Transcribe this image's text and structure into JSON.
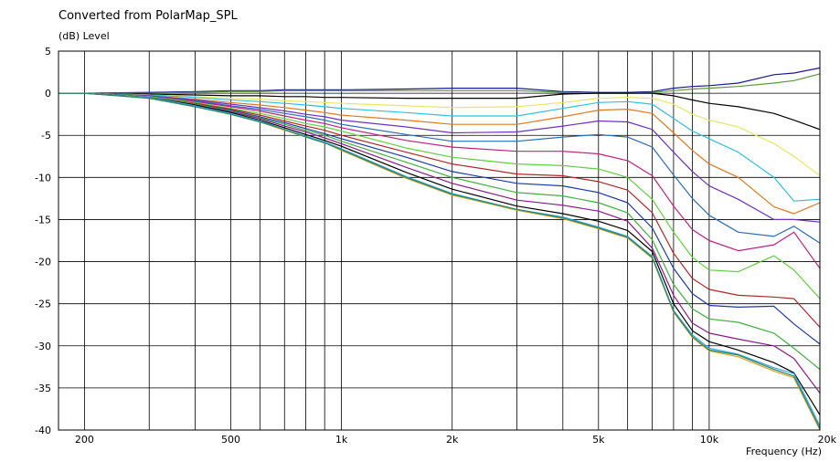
{
  "chart_data": {
    "type": "line",
    "title": "Converted from PolarMap_SPL",
    "ylabel": "(dB)  Level",
    "xlabel": "Frequency  (Hz)",
    "x_scale": "log",
    "xlim": [
      170,
      20000
    ],
    "ylim": [
      -40,
      5
    ],
    "grid": true,
    "x_ticks": [
      {
        "value": 200,
        "label": "200"
      },
      {
        "value": 500,
        "label": "500"
      },
      {
        "value": 1000,
        "label": "1k"
      },
      {
        "value": 2000,
        "label": "2k"
      },
      {
        "value": 5000,
        "label": "5k"
      },
      {
        "value": 10000,
        "label": "10k"
      },
      {
        "value": 20000,
        "label": "20k"
      }
    ],
    "x_minor_grid": [
      300,
      400,
      600,
      700,
      800,
      900,
      3000,
      4000,
      6000,
      7000,
      8000,
      9000
    ],
    "y_ticks": [
      5,
      0,
      -5,
      -10,
      -15,
      -20,
      -25,
      -30,
      -35,
      -40
    ],
    "x": [
      170,
      200,
      300,
      400,
      500,
      600,
      700,
      800,
      900,
      1000,
      1500,
      2000,
      3000,
      4000,
      5000,
      6000,
      7000,
      8000,
      9000,
      10000,
      12000,
      15000,
      17000,
      20000
    ],
    "series": [
      {
        "color": "#1a1a8c",
        "values": [
          0,
          0,
          0.1,
          0.2,
          0.3,
          0.3,
          0.4,
          0.4,
          0.4,
          0.4,
          0.5,
          0.6,
          0.6,
          0.2,
          0.1,
          0.1,
          0.2,
          0.6,
          0.8,
          0.9,
          1.2,
          2.2,
          2.4,
          3.0
        ]
      },
      {
        "color": "#5a9a3a",
        "values": [
          0,
          0,
          0,
          0.1,
          0.2,
          0.2,
          0.3,
          0.3,
          0.3,
          0.3,
          0.3,
          0.3,
          0.3,
          0.1,
          0,
          0,
          0.1,
          0.3,
          0.5,
          0.6,
          0.8,
          1.2,
          1.5,
          2.3
        ]
      },
      {
        "color": "#000000",
        "values": [
          0,
          0,
          -0.1,
          -0.2,
          -0.3,
          -0.3,
          -0.4,
          -0.4,
          -0.5,
          -0.5,
          -0.6,
          -0.6,
          -0.6,
          -0.1,
          0,
          0,
          0,
          -0.3,
          -0.8,
          -1.2,
          -1.6,
          -2.4,
          -3.2,
          -4.3
        ]
      },
      {
        "color": "#e8e860",
        "values": [
          0,
          0,
          -0.2,
          -0.4,
          -0.6,
          -0.7,
          -0.9,
          -1.0,
          -1.1,
          -1.2,
          -1.5,
          -1.7,
          -1.6,
          -1.1,
          -0.6,
          -0.5,
          -0.6,
          -1.3,
          -2.5,
          -3.2,
          -4.0,
          -6.0,
          -7.5,
          -9.8
        ]
      },
      {
        "color": "#30c0e0",
        "values": [
          0,
          0,
          -0.2,
          -0.5,
          -0.8,
          -1.0,
          -1.2,
          -1.4,
          -1.6,
          -1.8,
          -2.3,
          -2.7,
          -2.7,
          -1.8,
          -1.1,
          -1.0,
          -1.3,
          -3.0,
          -4.5,
          -5.4,
          -7.0,
          -10.0,
          -12.8,
          -12.6
        ]
      },
      {
        "color": "#e07820",
        "values": [
          0,
          0,
          -0.3,
          -0.7,
          -1.1,
          -1.4,
          -1.7,
          -2.0,
          -2.3,
          -2.6,
          -3.2,
          -3.7,
          -3.7,
          -2.8,
          -2.0,
          -1.9,
          -2.4,
          -4.7,
          -6.8,
          -8.4,
          -10.0,
          -13.5,
          -14.3,
          -13.0
        ]
      },
      {
        "color": "#7030c0",
        "values": [
          0,
          0,
          -0.3,
          -0.8,
          -1.3,
          -1.7,
          -2.1,
          -2.5,
          -2.8,
          -3.2,
          -4.0,
          -4.7,
          -4.6,
          -3.9,
          -3.3,
          -3.4,
          -4.3,
          -7.0,
          -9.3,
          -11.0,
          -12.6,
          -15.0,
          -15.0,
          -15.3
        ]
      },
      {
        "color": "#2a6eb8",
        "values": [
          0,
          0,
          -0.4,
          -0.9,
          -1.5,
          -1.9,
          -2.4,
          -2.8,
          -3.2,
          -3.7,
          -4.9,
          -5.7,
          -5.7,
          -5.2,
          -4.9,
          -5.2,
          -6.4,
          -9.7,
          -12.5,
          -14.5,
          -16.5,
          -17.0,
          -15.8,
          -17.8
        ]
      },
      {
        "color": "#c02080",
        "values": [
          0,
          0,
          -0.4,
          -1.0,
          -1.6,
          -2.1,
          -2.7,
          -3.2,
          -3.6,
          -4.1,
          -5.6,
          -6.4,
          -6.9,
          -6.9,
          -7.2,
          -8.0,
          -9.8,
          -13.4,
          -16.2,
          -17.5,
          -18.7,
          -18.0,
          -16.5,
          -20.8
        ]
      },
      {
        "color": "#60d040",
        "values": [
          0,
          0,
          -0.4,
          -1.1,
          -1.8,
          -2.4,
          -3.0,
          -3.6,
          -4.0,
          -4.5,
          -6.5,
          -7.6,
          -8.4,
          -8.6,
          -9.0,
          -10.0,
          -12.6,
          -16.5,
          -19.5,
          -21.0,
          -21.2,
          -19.3,
          -21.0,
          -24.4
        ]
      },
      {
        "color": "#b02828",
        "values": [
          0,
          0,
          -0.5,
          -1.2,
          -1.9,
          -2.6,
          -3.3,
          -3.9,
          -4.4,
          -5.0,
          -7.0,
          -8.4,
          -9.6,
          -9.8,
          -10.5,
          -11.5,
          -14.2,
          -19.0,
          -22.0,
          -23.3,
          -24.0,
          -24.2,
          -24.4,
          -27.8
        ]
      },
      {
        "color": "#1e3aa8",
        "values": [
          0,
          0,
          -0.5,
          -1.3,
          -2.0,
          -2.8,
          -3.5,
          -4.2,
          -4.8,
          -5.4,
          -7.6,
          -9.3,
          -10.7,
          -11.0,
          -11.8,
          -13.0,
          -16.0,
          -20.8,
          -23.8,
          -25.2,
          -25.4,
          -25.3,
          -27.4,
          -29.8
        ]
      },
      {
        "color": "#40b040",
        "values": [
          0,
          0,
          -0.5,
          -1.3,
          -2.1,
          -2.9,
          -3.7,
          -4.4,
          -5.0,
          -5.7,
          -8.2,
          -10.0,
          -11.8,
          -12.2,
          -13.0,
          -14.2,
          -17.4,
          -22.7,
          -25.6,
          -26.8,
          -27.2,
          -28.5,
          -30.3,
          -32.8
        ]
      },
      {
        "color": "#8a1a8a",
        "values": [
          0,
          0,
          -0.5,
          -1.4,
          -2.2,
          -3.0,
          -3.9,
          -4.6,
          -5.3,
          -6.0,
          -8.8,
          -10.7,
          -12.7,
          -13.3,
          -14.0,
          -15.2,
          -18.4,
          -24.0,
          -27.3,
          -28.5,
          -29.2,
          -30.0,
          -31.5,
          -35.6
        ]
      },
      {
        "color": "#000000",
        "values": [
          0,
          0,
          -0.5,
          -1.4,
          -2.3,
          -3.2,
          -4.1,
          -4.9,
          -5.6,
          -6.3,
          -9.4,
          -11.4,
          -13.4,
          -14.3,
          -15.2,
          -16.3,
          -18.8,
          -25.0,
          -28.2,
          -29.5,
          -30.5,
          -32.0,
          -33.2,
          -38.2
        ]
      },
      {
        "color": "#3aa0e8",
        "values": [
          0,
          0,
          -0.5,
          -1.5,
          -2.4,
          -3.3,
          -4.3,
          -5.1,
          -5.8,
          -6.6,
          -9.9,
          -11.9,
          -13.8,
          -14.7,
          -15.9,
          -17.0,
          -19.4,
          -25.8,
          -28.7,
          -30.3,
          -31.0,
          -32.6,
          -33.3,
          -39.5
        ]
      },
      {
        "color": "#e0a020",
        "values": [
          0,
          0,
          -0.6,
          -1.6,
          -2.5,
          -3.4,
          -4.4,
          -5.2,
          -5.9,
          -6.8,
          -10.1,
          -12.1,
          -13.9,
          -14.9,
          -16.1,
          -17.2,
          -19.6,
          -26.0,
          -29.0,
          -30.6,
          -31.3,
          -33.0,
          -33.8,
          -40.0
        ]
      },
      {
        "color": "#208a70",
        "values": [
          0,
          0,
          -0.6,
          -1.6,
          -2.5,
          -3.4,
          -4.3,
          -5.2,
          -5.9,
          -6.7,
          -10.0,
          -12.0,
          -13.8,
          -14.8,
          -16.0,
          -17.1,
          -19.5,
          -25.9,
          -28.9,
          -30.5,
          -31.1,
          -32.8,
          -33.6,
          -39.8
        ]
      }
    ]
  }
}
